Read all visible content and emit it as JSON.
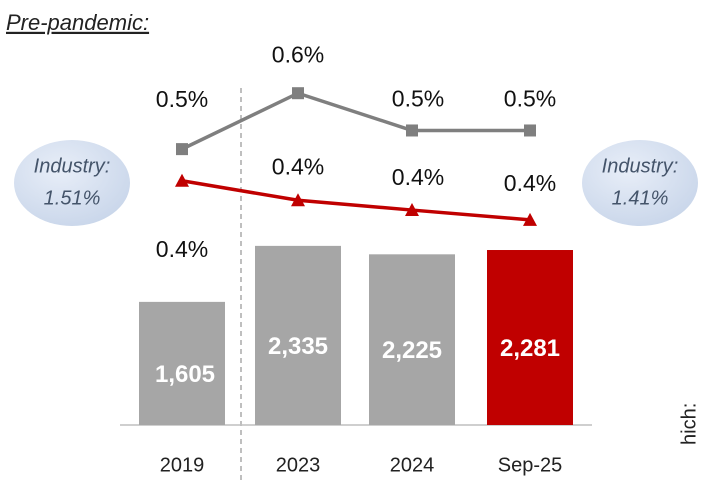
{
  "chart_data": {
    "type": "bar-line",
    "title": "Pre-pandemic:",
    "categories": [
      "2019",
      "2023",
      "2024",
      "Sep-25"
    ],
    "bars": {
      "values": [
        1605,
        2335,
        2225,
        2281
      ],
      "value_labels": [
        "1,605",
        "2,335",
        "2,225",
        "2,281"
      ],
      "colors": [
        "#a6a6a6",
        "#a6a6a6",
        "#a6a6a6",
        "#c00000"
      ],
      "ylim": [
        0,
        5540
      ]
    },
    "series": [
      {
        "color": "#7f7f7f",
        "marker": "square",
        "values": [
          0.47,
          0.62,
          0.52,
          0.52
        ],
        "value_labels": [
          "0.5%",
          "0.6%",
          "0.5%",
          "0.5%"
        ],
        "ylim": [
          -0.27,
          0.87
        ]
      },
      {
        "color": "#c00000",
        "marker": "triangle",
        "values": [
          0.44,
          0.4,
          0.38,
          0.36
        ],
        "value_labels": [
          "0.4%",
          "0.4%",
          "0.4%",
          "0.4%"
        ],
        "ylim": [
          -0.06,
          0.81
        ]
      }
    ],
    "callouts": [
      {
        "label": "Industry:",
        "value": "1.51%"
      },
      {
        "label": "Industry:",
        "value": "1.41%"
      }
    ],
    "side_text": "hich:"
  }
}
